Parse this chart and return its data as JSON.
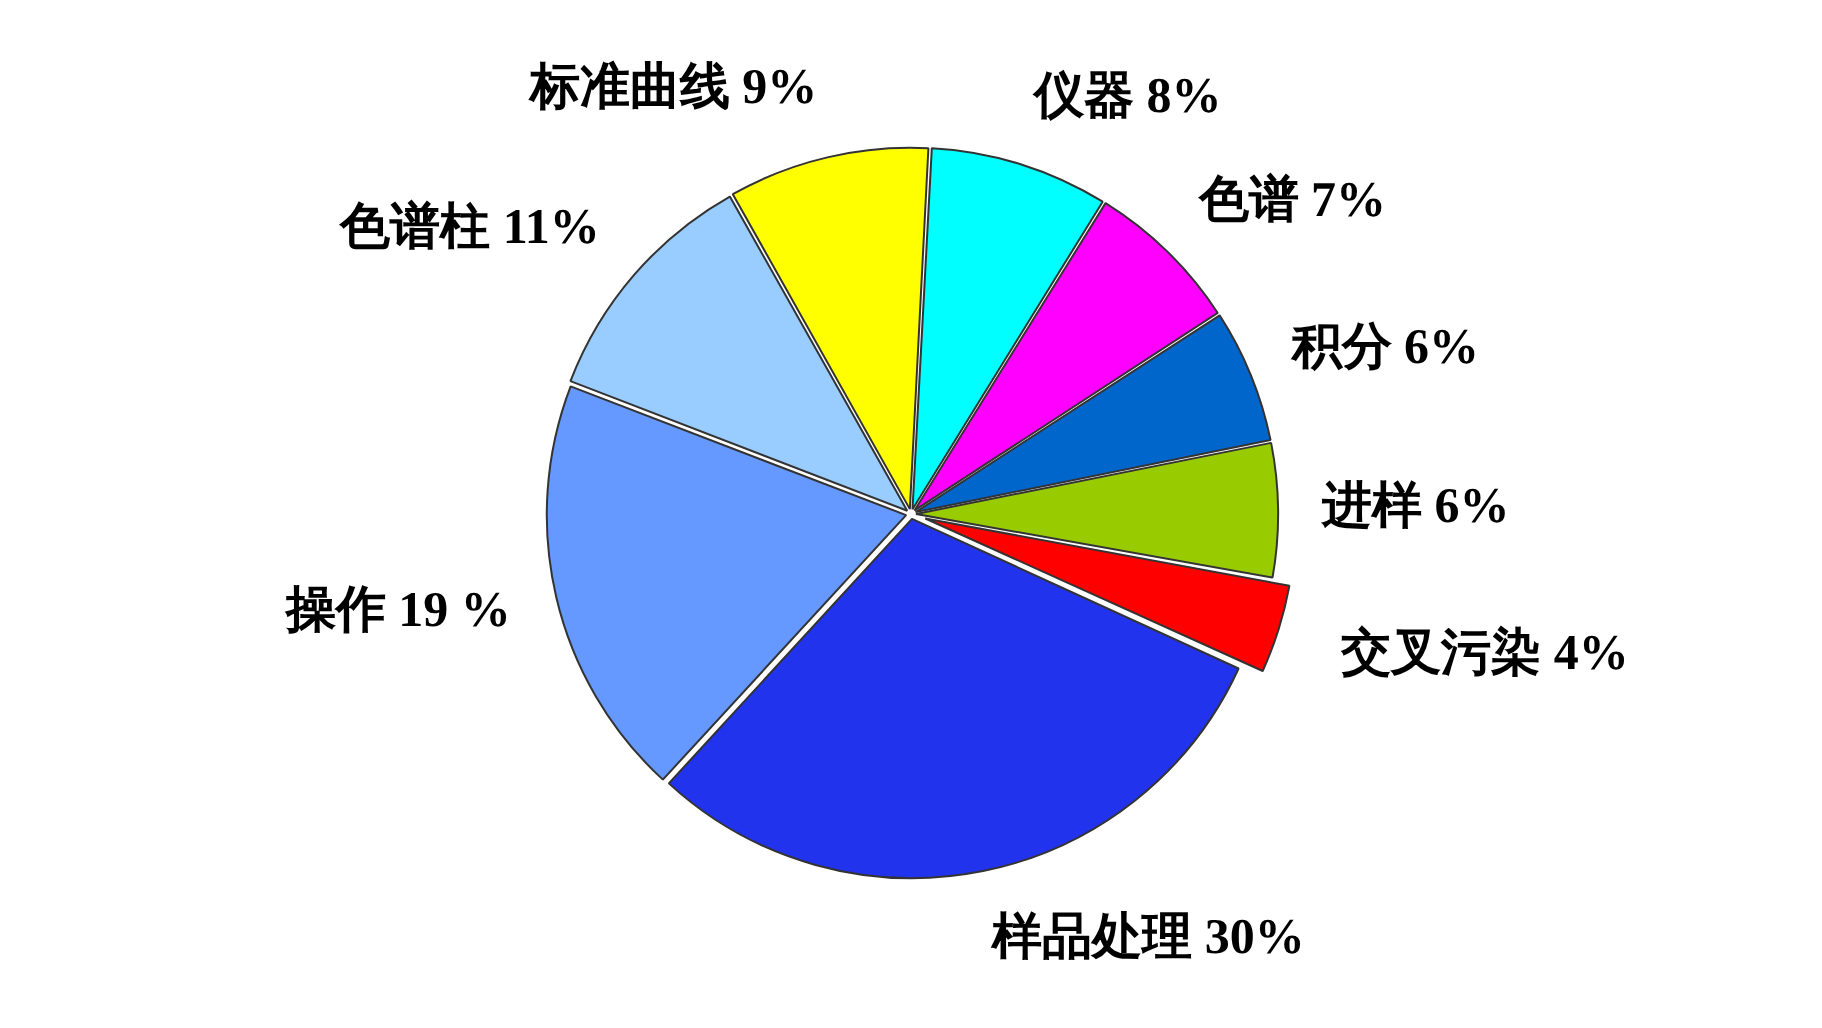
{
  "chart_data": {
    "type": "pie",
    "categories": [
      "仪器",
      "色谱",
      "积分",
      "进样",
      "交叉污染",
      "样品处理",
      "操作",
      "色谱柱",
      "标准曲线"
    ],
    "values": [
      8,
      7,
      6,
      6,
      4,
      30,
      19,
      11,
      9
    ],
    "colors": [
      "#00ffff",
      "#ff00ff",
      "#0066cc",
      "#99cc00",
      "#ff0000",
      "#2233ee",
      "#6699ff",
      "#99ccff",
      "#ffff00"
    ],
    "value_labels": [
      "8%",
      "7%",
      "6%",
      "6%",
      "4%",
      "30%",
      "19 %",
      "11%",
      "9%"
    ]
  }
}
